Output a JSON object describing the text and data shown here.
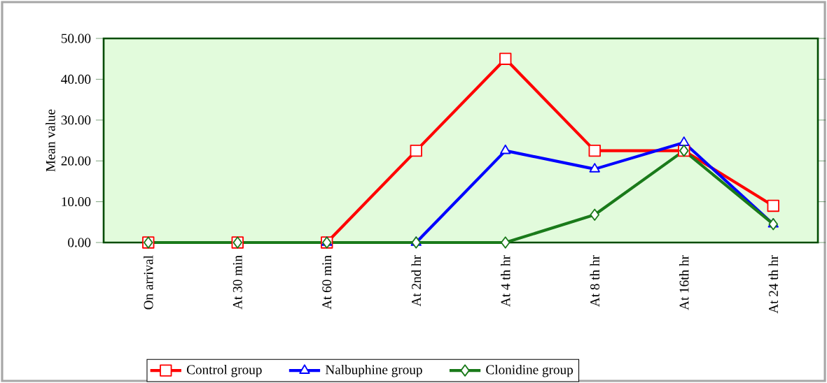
{
  "chart_data": {
    "type": "line",
    "ylabel": "Mean value",
    "categories": [
      "On arrival",
      "At 30 min",
      "At 60 min",
      "At 2nd hr",
      "At 4 th hr",
      "At 8 th hr",
      "At 16th hr",
      "At 24 th hr"
    ],
    "series": [
      {
        "name": "Control group",
        "color": "#ff0000",
        "marker": "square",
        "values": [
          0,
          0,
          0,
          22.5,
          45,
          22.5,
          22.5,
          9
        ]
      },
      {
        "name": "Nalbuphine group",
        "color": "#0000ff",
        "marker": "triangle",
        "values": [
          null,
          null,
          0,
          0,
          22.5,
          18,
          24.5,
          4.5
        ]
      },
      {
        "name": "Clonidine group",
        "color": "#1a7a1a",
        "marker": "diamond",
        "values": [
          0,
          0,
          0,
          0,
          0,
          6.8,
          22.5,
          4.5
        ]
      }
    ],
    "ylim": [
      0,
      50
    ],
    "yticks": [
      {
        "value": 0,
        "label": "0.00"
      },
      {
        "value": 10,
        "label": "10.00"
      },
      {
        "value": 20,
        "label": "20.00"
      },
      {
        "value": 30,
        "label": "30.00"
      },
      {
        "value": 40,
        "label": "40.00"
      },
      {
        "value": 50,
        "label": "50.00"
      }
    ],
    "legend": "bottom",
    "line_style": "solid"
  }
}
